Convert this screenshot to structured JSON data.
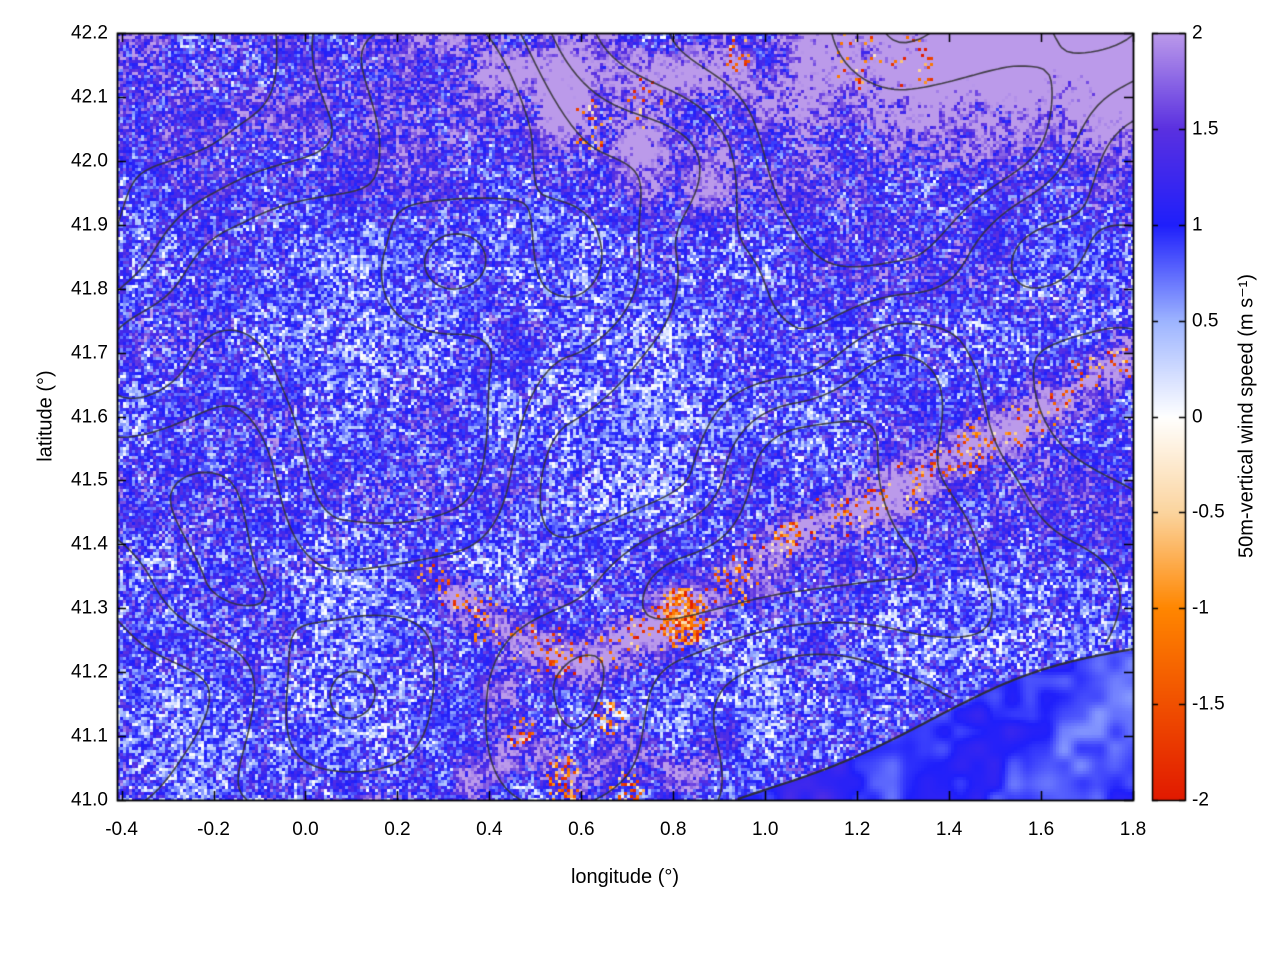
{
  "layout": {
    "background": "#ffffff"
  },
  "chart_data": {
    "type": "heatmap",
    "title": "",
    "xlabel": "longitude (°)",
    "ylabel": "latitude (°)",
    "xlim": [
      -0.41,
      1.8
    ],
    "ylim": [
      41.0,
      42.2
    ],
    "xticks": {
      "values": [
        -0.4,
        -0.2,
        0.0,
        0.2,
        0.4,
        0.6,
        0.8,
        1.0,
        1.2,
        1.4,
        1.6,
        1.8
      ],
      "labels": [
        "-0.4",
        "-0.2",
        "0.0",
        "0.2",
        "0.4",
        "0.6",
        "0.8",
        "1.0",
        "1.2",
        "1.4",
        "1.6",
        "1.8"
      ]
    },
    "yticks": {
      "values": [
        41.0,
        41.1,
        41.2,
        41.3,
        41.4,
        41.5,
        41.6,
        41.7,
        41.8,
        41.9,
        42.0,
        42.1,
        42.2
      ],
      "labels": [
        "41.0",
        "41.1",
        "41.2",
        "41.3",
        "41.4",
        "41.5",
        "41.6",
        "41.7",
        "41.8",
        "41.9",
        "42.0",
        "42.1",
        "42.2"
      ]
    },
    "colorbar": {
      "label": "50m-vertical wind speed (m s⁻¹)",
      "range": [
        -2,
        2
      ],
      "ticks": {
        "values": [
          -2,
          -1.5,
          -1,
          -0.5,
          0,
          0.5,
          1,
          1.5,
          2
        ],
        "labels": [
          "-2",
          "-1.5",
          "-1",
          "-0.5",
          "0",
          "0.5",
          "1",
          "1.5",
          "2"
        ]
      },
      "stops": [
        {
          "value": -2.0,
          "color": "#e11900"
        },
        {
          "value": -1.0,
          "color": "#ff8600"
        },
        {
          "value": -0.5,
          "color": "#fbd49e"
        },
        {
          "value": 0.0,
          "color": "#ffffff"
        },
        {
          "value": 0.5,
          "color": "#9db4ff"
        },
        {
          "value": 1.0,
          "color": "#1f1ffb"
        },
        {
          "value": 1.5,
          "color": "#5a30e0"
        },
        {
          "value": 2.0,
          "color": "#bb9aea"
        }
      ]
    },
    "contours": {
      "color": "#3a3a3a",
      "meaning": "terrain elevation contours overlaid in dark grey"
    },
    "field_summary": "Turbulent instantaneous 50 m vertical wind speed field over NE Spain: mostly updrafts 0.5–2 m s⁻¹ (blue) with fine white low-speed speckle; saturated ≥2 m s⁻¹ lavender patches along the northern edge (strongest in the NE corner) and along a SW–NE band near lat 41.0–41.5; localized downdrafts to −2 m s⁻¹ (orange/red) clustered around lon 0.4–1.3, lat 41.0–41.45 with a strong red core near (0.82, 41.29) and scattered orange cells near the top edge; smooth blue sea surface in the south-east corner bounded by a dark coastline contour."
  }
}
